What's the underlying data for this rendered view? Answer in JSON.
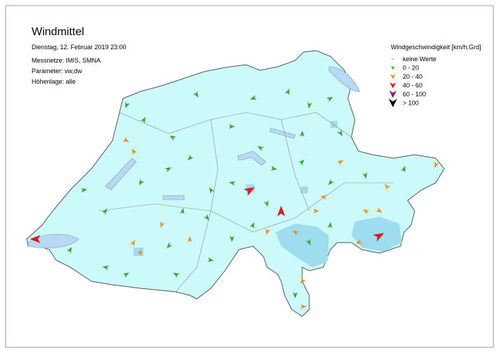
{
  "header": {
    "title": "Windmittel",
    "date": "Dienstag, 12. Februar 2019 23:00",
    "lines": [
      "Messnetze: IMIS, SMNA",
      "Parameter: vw,dw",
      "Höhenlage: alle"
    ]
  },
  "legend": {
    "title": "Windgeschwindigkeit [km/h,Grd]",
    "items": [
      {
        "label": "keine Werte",
        "color": "#9a9a9a"
      },
      {
        "label": "0 - 20",
        "color": "#2eaa2e"
      },
      {
        "label": "20 - 40",
        "color": "#f08c1e"
      },
      {
        "label": "40 - 60",
        "color": "#e01a1a"
      },
      {
        "label": "60 - 100",
        "color": "#7a1a8c"
      },
      {
        "label": "> 100",
        "color": "#000000"
      }
    ]
  }
}
